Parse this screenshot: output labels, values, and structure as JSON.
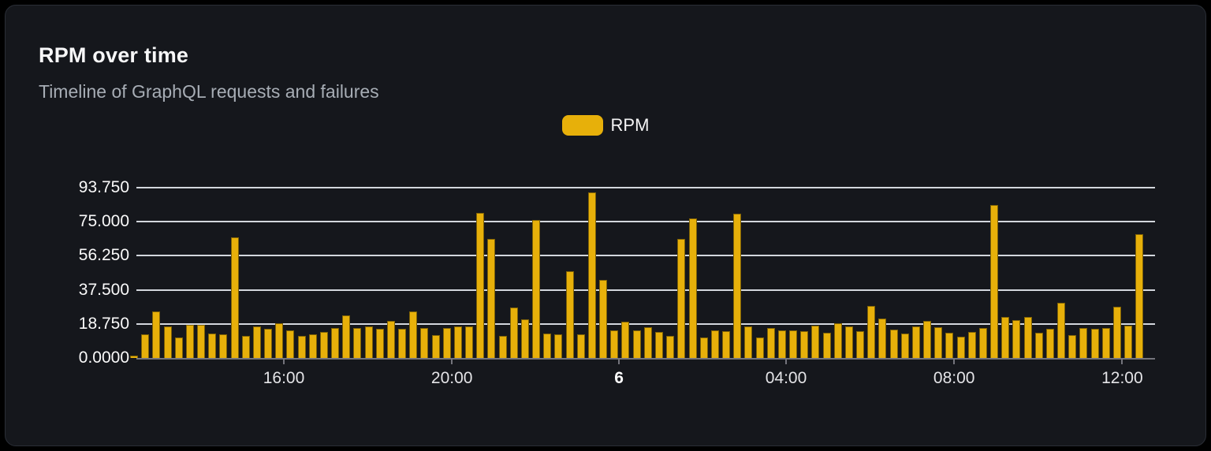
{
  "card": {
    "title": "RPM over time",
    "subtitle": "Timeline of GraphQL requests and failures"
  },
  "legend": {
    "label": "RPM",
    "swatch_color": "#e7b00a"
  },
  "colors": {
    "bar": "#e7b00a",
    "card_background": "#15171c",
    "gridline": "#e4e8ee",
    "axis": "#74747c",
    "title_text": "#f7f7f8",
    "subtitle_text": "#a7adb5"
  },
  "chart_data": {
    "type": "bar",
    "title": "RPM over time",
    "subtitle": "Timeline of GraphQL requests and failures",
    "xlabel": "",
    "ylabel": "",
    "series_name": "RPM",
    "grid": true,
    "legend_position": "top-center",
    "ylim": [
      0,
      93.75
    ],
    "y_ticks": [
      "0.0000",
      "18.750",
      "37.500",
      "56.250",
      "75.000",
      "93.750"
    ],
    "y_tick_values": [
      0,
      18.75,
      37.5,
      56.25,
      75,
      93.75
    ],
    "x_ticks": [
      {
        "label": "16:00",
        "pos": 0.15,
        "bold": false
      },
      {
        "label": "20:00",
        "pos": 0.314,
        "bold": false
      },
      {
        "label": "6",
        "pos": 0.477,
        "bold": true
      },
      {
        "label": "04:00",
        "pos": 0.64,
        "bold": false
      },
      {
        "label": "08:00",
        "pos": 0.804,
        "bold": false
      },
      {
        "label": "12:00",
        "pos": 0.968,
        "bold": false
      }
    ],
    "values": [
      1.4,
      13.2,
      25.8,
      17.5,
      11.4,
      18.2,
      18.2,
      13.6,
      12.9,
      66.2,
      12.2,
      17.2,
      16.0,
      19.0,
      15.0,
      12.2,
      12.9,
      14.3,
      16.5,
      23.3,
      16.7,
      17.2,
      16.0,
      20.5,
      16.2,
      25.8,
      16.5,
      12.4,
      16.7,
      17.2,
      17.2,
      79.7,
      65.6,
      12.0,
      27.8,
      21.2,
      76.0,
      13.6,
      12.9,
      47.8,
      12.9,
      91.0,
      42.8,
      15.0,
      19.8,
      15.0,
      16.8,
      14.3,
      12.0,
      65.6,
      76.8,
      11.5,
      15.4,
      14.7,
      79.5,
      17.2,
      11.5,
      16.4,
      15.0,
      15.4,
      14.7,
      17.9,
      14.0,
      19.3,
      17.5,
      14.7,
      28.6,
      21.5,
      15.7,
      13.3,
      17.2,
      20.3,
      16.9,
      13.9,
      11.9,
      14.3,
      16.5,
      84.4,
      22.5,
      20.7,
      22.5,
      14.0,
      16.0,
      30.3,
      12.6,
      16.7,
      16.0,
      16.5,
      28.3,
      17.9,
      68.0
    ]
  }
}
